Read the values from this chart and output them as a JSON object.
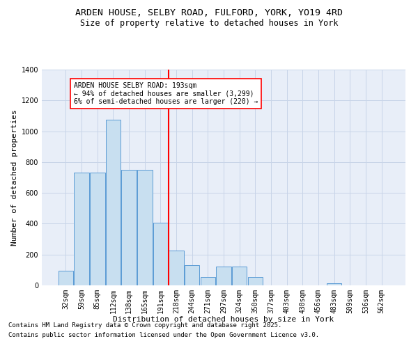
{
  "title1": "ARDEN HOUSE, SELBY ROAD, FULFORD, YORK, YO19 4RD",
  "title2": "Size of property relative to detached houses in York",
  "xlabel": "Distribution of detached houses by size in York",
  "ylabel": "Number of detached properties",
  "categories": [
    "32sqm",
    "59sqm",
    "85sqm",
    "112sqm",
    "138sqm",
    "165sqm",
    "191sqm",
    "218sqm",
    "244sqm",
    "271sqm",
    "297sqm",
    "324sqm",
    "350sqm",
    "377sqm",
    "403sqm",
    "430sqm",
    "456sqm",
    "483sqm",
    "509sqm",
    "536sqm",
    "562sqm"
  ],
  "values": [
    95,
    730,
    730,
    1075,
    750,
    750,
    405,
    225,
    130,
    55,
    120,
    120,
    55,
    0,
    0,
    0,
    0,
    15,
    0,
    0,
    0
  ],
  "bar_color": "#c8dff0",
  "bar_edge_color": "#5b9bd5",
  "vline_color": "red",
  "vline_x_index": 6,
  "annotation_text": "ARDEN HOUSE SELBY ROAD: 193sqm\n← 94% of detached houses are smaller (3,299)\n6% of semi-detached houses are larger (220) →",
  "annotation_box_color": "white",
  "annotation_box_edge_color": "red",
  "ylim": [
    0,
    1400
  ],
  "yticks": [
    0,
    200,
    400,
    600,
    800,
    1000,
    1200,
    1400
  ],
  "grid_color": "#c8d4e8",
  "bg_color": "#e8eef8",
  "footer1": "Contains HM Land Registry data © Crown copyright and database right 2025.",
  "footer2": "Contains public sector information licensed under the Open Government Licence v3.0.",
  "title_fontsize": 9.5,
  "subtitle_fontsize": 8.5,
  "axis_label_fontsize": 8,
  "tick_fontsize": 7,
  "annotation_fontsize": 7,
  "footer_fontsize": 6.5
}
